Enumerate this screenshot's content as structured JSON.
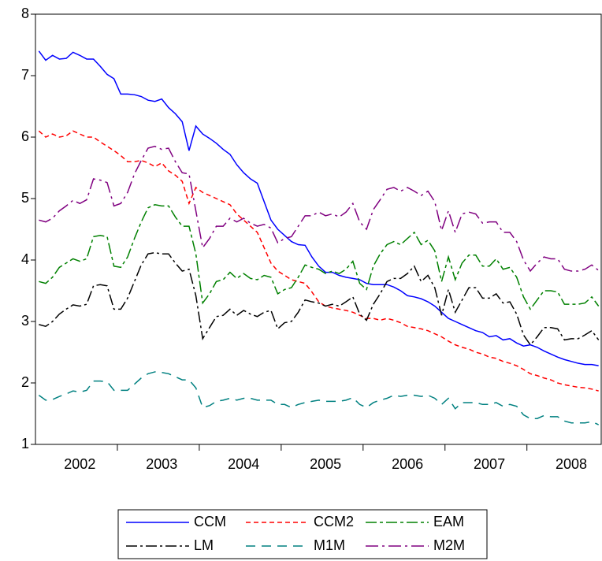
{
  "chart_data": {
    "type": "line",
    "categories": [
      null,
      null,
      null,
      null,
      null,
      null,
      "2002",
      null,
      null,
      null,
      null,
      null,
      null,
      null,
      null,
      null,
      null,
      null,
      "2003",
      null,
      null,
      null,
      null,
      null,
      null,
      null,
      null,
      null,
      null,
      null,
      "2004",
      null,
      null,
      null,
      null,
      null,
      null,
      null,
      null,
      null,
      null,
      null,
      "2005",
      null,
      null,
      null,
      null,
      null,
      null,
      null,
      null,
      null,
      null,
      null,
      "2006",
      null,
      null,
      null,
      null,
      null,
      null,
      null,
      null,
      null,
      null,
      null,
      "2007",
      null,
      null,
      null,
      null,
      null,
      null,
      null,
      null,
      null,
      null,
      null,
      "2008",
      null,
      null,
      null,
      null
    ],
    "ylim": [
      1,
      8
    ],
    "yticks": [
      1,
      2,
      3,
      4,
      5,
      6,
      7,
      8
    ],
    "grid": false,
    "series": [
      {
        "name": "CCM",
        "color": "#0000ff",
        "values": [
          7.4,
          7.25,
          7.33,
          7.27,
          7.28,
          7.38,
          7.33,
          7.27,
          7.27,
          7.15,
          7.02,
          6.95,
          6.7,
          6.7,
          6.69,
          6.66,
          6.6,
          6.58,
          6.62,
          6.48,
          6.38,
          6.25,
          5.78,
          6.18,
          6.05,
          5.98,
          5.9,
          5.8,
          5.72,
          5.55,
          5.42,
          5.32,
          5.25,
          4.95,
          4.65,
          4.5,
          4.4,
          4.3,
          4.25,
          4.24,
          4.05,
          3.9,
          3.8,
          3.8,
          3.75,
          3.72,
          3.7,
          3.68,
          3.62,
          3.6,
          3.6,
          3.6,
          3.56,
          3.5,
          3.42,
          3.4,
          3.37,
          3.32,
          3.25,
          3.15,
          3.05,
          3.0,
          2.95,
          2.9,
          2.85,
          2.82,
          2.75,
          2.77,
          2.7,
          2.72,
          2.65,
          2.6,
          2.62,
          2.58,
          2.52,
          2.47,
          2.42,
          2.38,
          2.35,
          2.32,
          2.3,
          2.3,
          2.28
        ]
      },
      {
        "name": "CCM2",
        "color": "#ff0000",
        "values": [
          6.1,
          6.0,
          6.05,
          6.0,
          6.02,
          6.1,
          6.05,
          6.0,
          6.0,
          5.92,
          5.85,
          5.78,
          5.7,
          5.6,
          5.6,
          5.62,
          5.58,
          5.52,
          5.58,
          5.45,
          5.38,
          5.28,
          4.92,
          5.18,
          5.1,
          5.05,
          5.0,
          4.95,
          4.9,
          4.75,
          4.65,
          4.55,
          4.45,
          4.2,
          3.95,
          3.82,
          3.75,
          3.68,
          3.65,
          3.62,
          3.48,
          3.32,
          3.25,
          3.22,
          3.2,
          3.18,
          3.15,
          3.1,
          3.05,
          3.05,
          3.02,
          3.05,
          3.02,
          2.98,
          2.92,
          2.9,
          2.88,
          2.85,
          2.8,
          2.75,
          2.68,
          2.62,
          2.58,
          2.55,
          2.5,
          2.47,
          2.42,
          2.4,
          2.35,
          2.32,
          2.28,
          2.22,
          2.15,
          2.12,
          2.08,
          2.05,
          2.0,
          1.97,
          1.95,
          1.93,
          1.92,
          1.9,
          1.87
        ]
      },
      {
        "name": "EAM",
        "color": "#008000",
        "values": [
          3.65,
          3.62,
          3.72,
          3.88,
          3.95,
          4.02,
          3.98,
          4.02,
          4.38,
          4.4,
          4.38,
          3.9,
          3.88,
          4.05,
          4.35,
          4.62,
          4.85,
          4.9,
          4.88,
          4.88,
          4.7,
          4.55,
          4.55,
          4.1,
          3.3,
          3.45,
          3.65,
          3.68,
          3.8,
          3.7,
          3.78,
          3.7,
          3.68,
          3.75,
          3.72,
          3.45,
          3.52,
          3.55,
          3.72,
          3.92,
          3.88,
          3.85,
          3.78,
          3.82,
          3.78,
          3.85,
          3.98,
          3.62,
          3.52,
          3.9,
          4.1,
          4.25,
          4.3,
          4.25,
          4.35,
          4.45,
          4.25,
          4.32,
          4.15,
          3.65,
          4.05,
          3.68,
          3.95,
          4.08,
          4.08,
          3.9,
          3.9,
          4.02,
          3.85,
          3.88,
          3.72,
          3.4,
          3.2,
          3.35,
          3.5,
          3.5,
          3.48,
          3.28,
          3.28,
          3.28,
          3.3,
          3.4,
          3.25
        ]
      },
      {
        "name": "LM",
        "color": "#000000",
        "values": [
          2.95,
          2.92,
          3.0,
          3.12,
          3.2,
          3.27,
          3.25,
          3.28,
          3.58,
          3.6,
          3.58,
          3.2,
          3.2,
          3.38,
          3.65,
          3.92,
          4.1,
          4.12,
          4.1,
          4.1,
          3.95,
          3.82,
          3.85,
          3.42,
          2.72,
          2.9,
          3.08,
          3.1,
          3.2,
          3.1,
          3.18,
          3.12,
          3.08,
          3.15,
          3.18,
          2.88,
          2.98,
          3.0,
          3.15,
          3.35,
          3.32,
          3.3,
          3.25,
          3.28,
          3.25,
          3.32,
          3.4,
          3.12,
          3.02,
          3.28,
          3.45,
          3.65,
          3.7,
          3.7,
          3.78,
          3.9,
          3.65,
          3.75,
          3.55,
          3.1,
          3.52,
          3.15,
          3.35,
          3.55,
          3.55,
          3.38,
          3.38,
          3.45,
          3.3,
          3.32,
          3.12,
          2.78,
          2.62,
          2.75,
          2.9,
          2.9,
          2.88,
          2.7,
          2.72,
          2.72,
          2.78,
          2.85,
          2.7
        ]
      },
      {
        "name": "M1M",
        "color": "#008080",
        "values": [
          1.8,
          1.72,
          1.73,
          1.78,
          1.82,
          1.87,
          1.85,
          1.88,
          2.03,
          2.03,
          2.02,
          1.88,
          1.88,
          1.88,
          1.98,
          2.08,
          2.15,
          2.18,
          2.17,
          2.15,
          2.1,
          2.05,
          2.05,
          1.92,
          1.6,
          1.63,
          1.7,
          1.72,
          1.75,
          1.72,
          1.75,
          1.75,
          1.72,
          1.72,
          1.72,
          1.65,
          1.65,
          1.6,
          1.65,
          1.68,
          1.7,
          1.72,
          1.7,
          1.7,
          1.7,
          1.72,
          1.76,
          1.65,
          1.6,
          1.68,
          1.72,
          1.75,
          1.8,
          1.78,
          1.8,
          1.8,
          1.78,
          1.8,
          1.75,
          1.65,
          1.75,
          1.58,
          1.68,
          1.68,
          1.68,
          1.65,
          1.65,
          1.68,
          1.62,
          1.65,
          1.62,
          1.48,
          1.42,
          1.42,
          1.47,
          1.45,
          1.45,
          1.38,
          1.35,
          1.35,
          1.35,
          1.37,
          1.32
        ]
      },
      {
        "name": "M2M",
        "color": "#800080",
        "values": [
          4.65,
          4.62,
          4.68,
          4.8,
          4.88,
          4.97,
          4.92,
          4.98,
          5.32,
          5.3,
          5.26,
          4.88,
          4.92,
          5.1,
          5.4,
          5.62,
          5.82,
          5.85,
          5.8,
          5.82,
          5.6,
          5.42,
          5.4,
          4.8,
          4.2,
          4.35,
          4.55,
          4.55,
          4.68,
          4.62,
          4.68,
          4.6,
          4.55,
          4.58,
          4.52,
          4.28,
          4.35,
          4.38,
          4.55,
          4.72,
          4.72,
          4.78,
          4.72,
          4.75,
          4.7,
          4.78,
          4.92,
          4.62,
          4.5,
          4.82,
          4.98,
          5.15,
          5.18,
          5.12,
          5.18,
          5.12,
          5.05,
          5.12,
          4.95,
          4.48,
          4.8,
          4.45,
          4.75,
          4.78,
          4.75,
          4.6,
          4.62,
          4.62,
          4.45,
          4.45,
          4.3,
          4.0,
          3.82,
          3.95,
          4.05,
          4.02,
          4.02,
          3.85,
          3.82,
          3.82,
          3.85,
          3.92,
          3.83
        ]
      }
    ]
  }
}
